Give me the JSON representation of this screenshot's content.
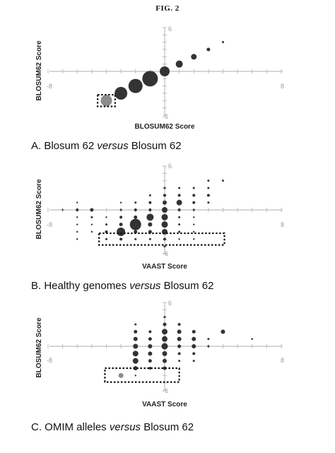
{
  "figure": {
    "title": "FIG. 2"
  },
  "chart_data": [
    {
      "type": "scatter",
      "panel": "A",
      "caption_prefix": "A. Blosum 62 ",
      "caption_italic": "versus",
      "caption_suffix": " Blosum 62",
      "xlabel": "BLOSUM62 Score",
      "ylabel": "BLOSUM62 Score",
      "xlim": [
        -8,
        8
      ],
      "ylim": [
        -6,
        6
      ],
      "ticks": {
        "xmin": "-8",
        "xmax": "8",
        "ymax": "6",
        "ymin": "-6"
      },
      "grid": false,
      "point_color": "#333333",
      "highlight_color": "#8c8c8c",
      "points": [
        {
          "x": -4,
          "y": -4,
          "size": 8,
          "highlight": true
        },
        {
          "x": -3,
          "y": -3,
          "size": 9
        },
        {
          "x": -2,
          "y": -2,
          "size": 10
        },
        {
          "x": -1,
          "y": -1,
          "size": 11
        },
        {
          "x": 0,
          "y": 0,
          "size": 7
        },
        {
          "x": 1,
          "y": 1,
          "size": 5
        },
        {
          "x": 2,
          "y": 2,
          "size": 4
        },
        {
          "x": 3,
          "y": 3,
          "size": 2.5
        },
        {
          "x": 4,
          "y": 4,
          "size": 1.5
        }
      ],
      "highlight_box": {
        "x": [
          -4.6,
          -3.4
        ],
        "y": [
          -4.8,
          -3.2
        ]
      }
    },
    {
      "type": "scatter",
      "panel": "B",
      "caption_prefix": "B. Healthy genomes ",
      "caption_italic": "versus",
      "caption_suffix": " Blosum 62",
      "xlabel": "VAAST Score",
      "ylabel": "BLOSUM62 Score",
      "xlim": [
        -8,
        8
      ],
      "ylim": [
        -6,
        6
      ],
      "ticks": {
        "xmin": "-8",
        "xmax": "8",
        "ymax": "6",
        "ymin": "-6"
      },
      "grid": false,
      "point_color": "#333333",
      "highlight_color": "#8c8c8c",
      "points": [
        {
          "x": -7,
          "y": 0,
          "size": 1.2
        },
        {
          "x": -6,
          "y": 1,
          "size": 1.2
        },
        {
          "x": -6,
          "y": 0,
          "size": 2
        },
        {
          "x": -6,
          "y": -1,
          "size": 1.2
        },
        {
          "x": -6,
          "y": -2,
          "size": 1.2
        },
        {
          "x": -6,
          "y": -3,
          "size": 1.2
        },
        {
          "x": -6,
          "y": -4,
          "size": 1.2
        },
        {
          "x": -5,
          "y": 0,
          "size": 2.5
        },
        {
          "x": -5,
          "y": -1,
          "size": 1.5
        },
        {
          "x": -5,
          "y": -2,
          "size": 1.2
        },
        {
          "x": -5,
          "y": -3,
          "size": 1.2
        },
        {
          "x": -4,
          "y": -1,
          "size": 1.2
        },
        {
          "x": -4,
          "y": -2,
          "size": 1.5
        },
        {
          "x": -4,
          "y": -3,
          "size": 2
        },
        {
          "x": -4,
          "y": -4,
          "size": 1.5
        },
        {
          "x": -3,
          "y": 1,
          "size": 1.2
        },
        {
          "x": -3,
          "y": 0,
          "size": 1.5
        },
        {
          "x": -3,
          "y": -1,
          "size": 2
        },
        {
          "x": -3,
          "y": -2,
          "size": 2.5
        },
        {
          "x": -3,
          "y": -3,
          "size": 6
        },
        {
          "x": -3,
          "y": -4,
          "size": 2
        },
        {
          "x": -2,
          "y": 1,
          "size": 1.5
        },
        {
          "x": -2,
          "y": 0,
          "size": 2
        },
        {
          "x": -2,
          "y": -1,
          "size": 2.5
        },
        {
          "x": -2,
          "y": -2,
          "size": 8
        },
        {
          "x": -2,
          "y": -3,
          "size": 2.5
        },
        {
          "x": -2,
          "y": -4,
          "size": 1.5
        },
        {
          "x": -1,
          "y": 2,
          "size": 1.5
        },
        {
          "x": -1,
          "y": 1,
          "size": 2
        },
        {
          "x": -1,
          "y": 0,
          "size": 2
        },
        {
          "x": -1,
          "y": -1,
          "size": 5
        },
        {
          "x": -1,
          "y": -2,
          "size": 3
        },
        {
          "x": -1,
          "y": -3,
          "size": 2.5
        },
        {
          "x": -1,
          "y": -4,
          "size": 1.5
        },
        {
          "x": 0,
          "y": 3,
          "size": 1.5
        },
        {
          "x": 0,
          "y": 2,
          "size": 2
        },
        {
          "x": 0,
          "y": 1,
          "size": 3
        },
        {
          "x": 0,
          "y": 0,
          "size": 4
        },
        {
          "x": 0,
          "y": -1,
          "size": 4.5
        },
        {
          "x": 0,
          "y": -2,
          "size": 4.5
        },
        {
          "x": 0,
          "y": -3,
          "size": 4
        },
        {
          "x": 0,
          "y": -4,
          "size": 2
        },
        {
          "x": 0,
          "y": -5,
          "size": 1.5
        },
        {
          "x": 1,
          "y": 3,
          "size": 1.5
        },
        {
          "x": 1,
          "y": 2,
          "size": 2
        },
        {
          "x": 1,
          "y": 1,
          "size": 4
        },
        {
          "x": 1,
          "y": 0,
          "size": 2
        },
        {
          "x": 1,
          "y": -1,
          "size": 1.5
        },
        {
          "x": 1,
          "y": -2,
          "size": 1.5
        },
        {
          "x": 1,
          "y": -3,
          "size": 1.5
        },
        {
          "x": 1,
          "y": -4,
          "size": 1.2
        },
        {
          "x": 2,
          "y": 3,
          "size": 1.5
        },
        {
          "x": 2,
          "y": 2,
          "size": 2
        },
        {
          "x": 2,
          "y": 1,
          "size": 2
        },
        {
          "x": 2,
          "y": 0,
          "size": 1.5
        },
        {
          "x": 2,
          "y": -1,
          "size": 1.2
        },
        {
          "x": 2,
          "y": -2,
          "size": 1.2
        },
        {
          "x": 2,
          "y": -3,
          "size": 1.2
        },
        {
          "x": 2,
          "y": -4,
          "size": 1.2
        },
        {
          "x": 3,
          "y": 4,
          "size": 1.5
        },
        {
          "x": 3,
          "y": 3,
          "size": 1.5
        },
        {
          "x": 3,
          "y": 2,
          "size": 2
        },
        {
          "x": 3,
          "y": 1,
          "size": 1.5
        },
        {
          "x": 4,
          "y": 4,
          "size": 1.5
        }
      ],
      "highlight_box": {
        "x": [
          -4.5,
          4.1
        ],
        "y": [
          -4.8,
          -3.2
        ]
      }
    },
    {
      "type": "scatter",
      "panel": "C",
      "caption_prefix": "C. OMIM alleles ",
      "caption_italic": "versus",
      "caption_suffix": " Blosum 62",
      "xlabel": "VAAST Score",
      "ylabel": "BLOSUM62 Score",
      "xlim": [
        -8,
        8
      ],
      "ylim": [
        -6,
        6
      ],
      "ticks": {
        "xmin": "-8",
        "xmax": "8",
        "ymax": "6",
        "ymin": "-6"
      },
      "grid": false,
      "point_color": "#333333",
      "highlight_color": "#8c8c8c",
      "points": [
        {
          "x": -3,
          "y": -4,
          "size": 3.5,
          "highlight": true
        },
        {
          "x": -2,
          "y": -4,
          "size": 1.2
        },
        {
          "x": -2,
          "y": 3,
          "size": 1.5
        },
        {
          "x": -2,
          "y": 2,
          "size": 2.5
        },
        {
          "x": -2,
          "y": 1,
          "size": 3
        },
        {
          "x": -2,
          "y": 0,
          "size": 3.5
        },
        {
          "x": -2,
          "y": -1,
          "size": 4
        },
        {
          "x": -2,
          "y": -2,
          "size": 4
        },
        {
          "x": -2,
          "y": -3,
          "size": 3
        },
        {
          "x": -1,
          "y": 2,
          "size": 2
        },
        {
          "x": -1,
          "y": 1,
          "size": 2.5
        },
        {
          "x": -1,
          "y": 0,
          "size": 3
        },
        {
          "x": -1,
          "y": -1,
          "size": 3
        },
        {
          "x": -1,
          "y": -2,
          "size": 2.5
        },
        {
          "x": -1,
          "y": -3,
          "size": 2
        },
        {
          "x": 0,
          "y": 4,
          "size": 1.5
        },
        {
          "x": 0,
          "y": 3,
          "size": 2.5
        },
        {
          "x": 0,
          "y": 2,
          "size": 4
        },
        {
          "x": 0,
          "y": 1,
          "size": 4
        },
        {
          "x": 0,
          "y": 0,
          "size": 4.5
        },
        {
          "x": 0,
          "y": -1,
          "size": 3.5
        },
        {
          "x": 0,
          "y": -2,
          "size": 3
        },
        {
          "x": 0,
          "y": -3,
          "size": 2.5
        },
        {
          "x": 1,
          "y": 3,
          "size": 2
        },
        {
          "x": 1,
          "y": 2,
          "size": 3
        },
        {
          "x": 1,
          "y": 1,
          "size": 3
        },
        {
          "x": 1,
          "y": 0,
          "size": 2.5
        },
        {
          "x": 1,
          "y": -1,
          "size": 2
        },
        {
          "x": 1,
          "y": -2,
          "size": 1.5
        },
        {
          "x": 2,
          "y": 2,
          "size": 2.5
        },
        {
          "x": 2,
          "y": 1,
          "size": 3
        },
        {
          "x": 2,
          "y": 0,
          "size": 3
        },
        {
          "x": 2,
          "y": -1,
          "size": 2
        },
        {
          "x": 2,
          "y": -2,
          "size": 1.5
        },
        {
          "x": 3,
          "y": 1,
          "size": 1.5
        },
        {
          "x": 3,
          "y": 0,
          "size": 1.5
        },
        {
          "x": 4,
          "y": 2,
          "size": 3
        },
        {
          "x": 6,
          "y": 1,
          "size": 1.3
        }
      ],
      "highlight_box": {
        "x": [
          -4.1,
          1.0
        ],
        "y": [
          -4.9,
          -3.0
        ]
      }
    }
  ]
}
